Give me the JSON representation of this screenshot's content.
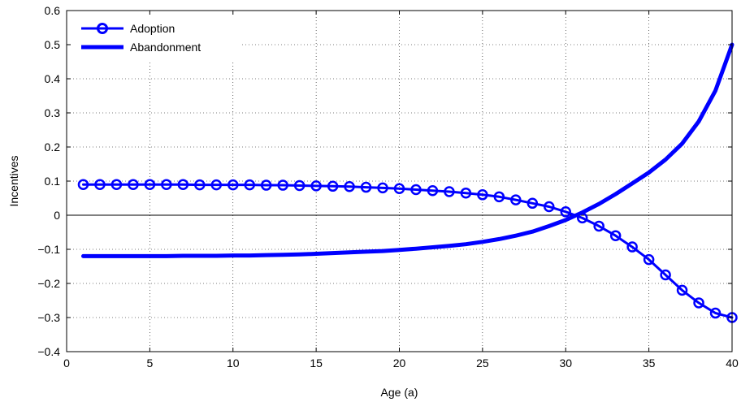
{
  "chart_data": {
    "type": "line",
    "xlabel": "Age (a)",
    "ylabel": "Incentives",
    "xlim": [
      0,
      40
    ],
    "ylim": [
      -0.4,
      0.6
    ],
    "xticks": [
      0,
      5,
      10,
      15,
      20,
      25,
      30,
      35,
      40
    ],
    "yticks": [
      -0.4,
      -0.3,
      -0.2,
      -0.1,
      0,
      0.1,
      0.2,
      0.3,
      0.4,
      0.5,
      0.6
    ],
    "ytick_labels": [
      "−0.4",
      "−0.3",
      "−0.2",
      "−0.1",
      "0",
      "0.1",
      "0.2",
      "0.3",
      "0.4",
      "0.5",
      "0.6"
    ],
    "grid": true,
    "zero_line": true,
    "legend_position": "top-left",
    "x": [
      1,
      2,
      3,
      4,
      5,
      6,
      7,
      8,
      9,
      10,
      11,
      12,
      13,
      14,
      15,
      16,
      17,
      18,
      19,
      20,
      21,
      22,
      23,
      24,
      25,
      26,
      27,
      28,
      29,
      30,
      31,
      32,
      33,
      34,
      35,
      36,
      37,
      38,
      39,
      40
    ],
    "series": [
      {
        "name": "Adoption",
        "color": "#0000ff",
        "marker": "circle",
        "values": [
          0.09,
          0.09,
          0.09,
          0.09,
          0.09,
          0.09,
          0.09,
          0.089,
          0.089,
          0.089,
          0.089,
          0.088,
          0.088,
          0.087,
          0.086,
          0.085,
          0.084,
          0.082,
          0.08,
          0.078,
          0.075,
          0.072,
          0.069,
          0.065,
          0.06,
          0.054,
          0.045,
          0.035,
          0.025,
          0.01,
          -0.008,
          -0.032,
          -0.06,
          -0.093,
          -0.13,
          -0.175,
          -0.22,
          -0.257,
          -0.287,
          -0.3
        ]
      },
      {
        "name": "Abandonment",
        "color": "#0000ff",
        "marker": "none",
        "values": [
          -0.12,
          -0.12,
          -0.12,
          -0.12,
          -0.12,
          -0.12,
          -0.119,
          -0.119,
          -0.119,
          -0.118,
          -0.118,
          -0.117,
          -0.116,
          -0.115,
          -0.113,
          -0.111,
          -0.109,
          -0.107,
          -0.105,
          -0.102,
          -0.098,
          -0.094,
          -0.09,
          -0.085,
          -0.078,
          -0.07,
          -0.06,
          -0.048,
          -0.032,
          -0.014,
          0.008,
          0.033,
          0.062,
          0.093,
          0.125,
          0.163,
          0.21,
          0.275,
          0.365,
          0.5
        ]
      }
    ]
  }
}
